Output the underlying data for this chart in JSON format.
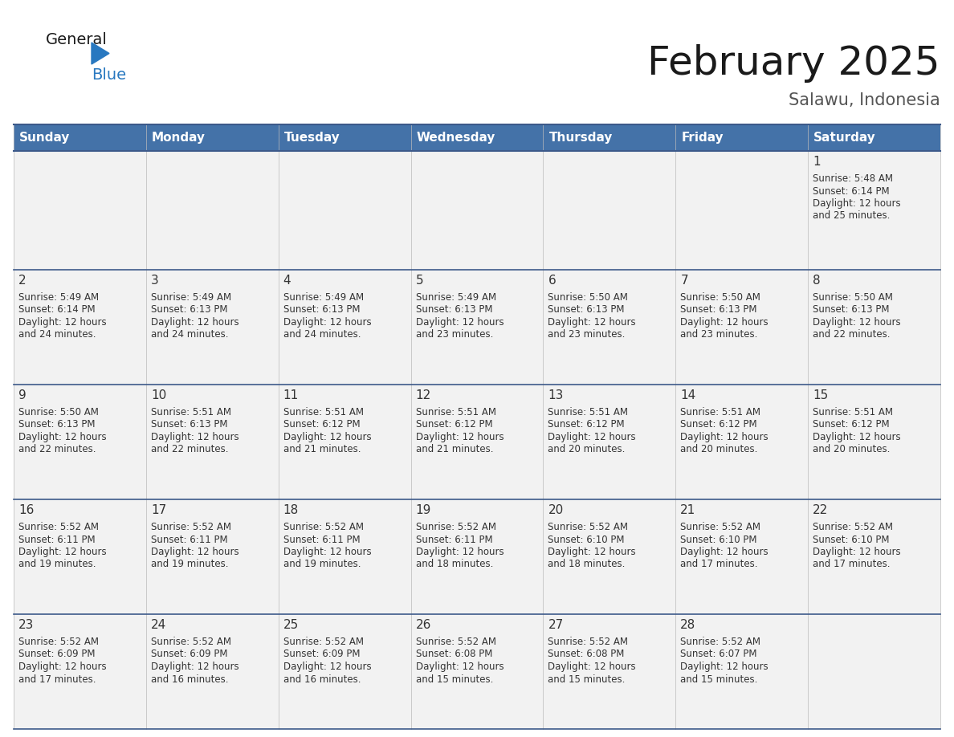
{
  "title": "February 2025",
  "subtitle": "Salawu, Indonesia",
  "header_color": "#4472a8",
  "header_text_color": "#ffffff",
  "day_names": [
    "Sunday",
    "Monday",
    "Tuesday",
    "Wednesday",
    "Thursday",
    "Friday",
    "Saturday"
  ],
  "cell_bg_color": "#f2f2f2",
  "cell_border_color": "#3d5a8a",
  "text_color": "#333333",
  "logo_general_color": "#1a1a1a",
  "logo_blue_color": "#2878c0",
  "title_fontsize": 36,
  "subtitle_fontsize": 15,
  "header_fontsize": 11,
  "day_num_fontsize": 11,
  "info_fontsize": 8.5,
  "days": [
    {
      "day": 1,
      "col": 6,
      "row": 0,
      "sunrise": "5:48 AM",
      "sunset": "6:14 PM",
      "daylight": "12 hours and 25 minutes."
    },
    {
      "day": 2,
      "col": 0,
      "row": 1,
      "sunrise": "5:49 AM",
      "sunset": "6:14 PM",
      "daylight": "12 hours and 24 minutes."
    },
    {
      "day": 3,
      "col": 1,
      "row": 1,
      "sunrise": "5:49 AM",
      "sunset": "6:13 PM",
      "daylight": "12 hours and 24 minutes."
    },
    {
      "day": 4,
      "col": 2,
      "row": 1,
      "sunrise": "5:49 AM",
      "sunset": "6:13 PM",
      "daylight": "12 hours and 24 minutes."
    },
    {
      "day": 5,
      "col": 3,
      "row": 1,
      "sunrise": "5:49 AM",
      "sunset": "6:13 PM",
      "daylight": "12 hours and 23 minutes."
    },
    {
      "day": 6,
      "col": 4,
      "row": 1,
      "sunrise": "5:50 AM",
      "sunset": "6:13 PM",
      "daylight": "12 hours and 23 minutes."
    },
    {
      "day": 7,
      "col": 5,
      "row": 1,
      "sunrise": "5:50 AM",
      "sunset": "6:13 PM",
      "daylight": "12 hours and 23 minutes."
    },
    {
      "day": 8,
      "col": 6,
      "row": 1,
      "sunrise": "5:50 AM",
      "sunset": "6:13 PM",
      "daylight": "12 hours and 22 minutes."
    },
    {
      "day": 9,
      "col": 0,
      "row": 2,
      "sunrise": "5:50 AM",
      "sunset": "6:13 PM",
      "daylight": "12 hours and 22 minutes."
    },
    {
      "day": 10,
      "col": 1,
      "row": 2,
      "sunrise": "5:51 AM",
      "sunset": "6:13 PM",
      "daylight": "12 hours and 22 minutes."
    },
    {
      "day": 11,
      "col": 2,
      "row": 2,
      "sunrise": "5:51 AM",
      "sunset": "6:12 PM",
      "daylight": "12 hours and 21 minutes."
    },
    {
      "day": 12,
      "col": 3,
      "row": 2,
      "sunrise": "5:51 AM",
      "sunset": "6:12 PM",
      "daylight": "12 hours and 21 minutes."
    },
    {
      "day": 13,
      "col": 4,
      "row": 2,
      "sunrise": "5:51 AM",
      "sunset": "6:12 PM",
      "daylight": "12 hours and 20 minutes."
    },
    {
      "day": 14,
      "col": 5,
      "row": 2,
      "sunrise": "5:51 AM",
      "sunset": "6:12 PM",
      "daylight": "12 hours and 20 minutes."
    },
    {
      "day": 15,
      "col": 6,
      "row": 2,
      "sunrise": "5:51 AM",
      "sunset": "6:12 PM",
      "daylight": "12 hours and 20 minutes."
    },
    {
      "day": 16,
      "col": 0,
      "row": 3,
      "sunrise": "5:52 AM",
      "sunset": "6:11 PM",
      "daylight": "12 hours and 19 minutes."
    },
    {
      "day": 17,
      "col": 1,
      "row": 3,
      "sunrise": "5:52 AM",
      "sunset": "6:11 PM",
      "daylight": "12 hours and 19 minutes."
    },
    {
      "day": 18,
      "col": 2,
      "row": 3,
      "sunrise": "5:52 AM",
      "sunset": "6:11 PM",
      "daylight": "12 hours and 19 minutes."
    },
    {
      "day": 19,
      "col": 3,
      "row": 3,
      "sunrise": "5:52 AM",
      "sunset": "6:11 PM",
      "daylight": "12 hours and 18 minutes."
    },
    {
      "day": 20,
      "col": 4,
      "row": 3,
      "sunrise": "5:52 AM",
      "sunset": "6:10 PM",
      "daylight": "12 hours and 18 minutes."
    },
    {
      "day": 21,
      "col": 5,
      "row": 3,
      "sunrise": "5:52 AM",
      "sunset": "6:10 PM",
      "daylight": "12 hours and 17 minutes."
    },
    {
      "day": 22,
      "col": 6,
      "row": 3,
      "sunrise": "5:52 AM",
      "sunset": "6:10 PM",
      "daylight": "12 hours and 17 minutes."
    },
    {
      "day": 23,
      "col": 0,
      "row": 4,
      "sunrise": "5:52 AM",
      "sunset": "6:09 PM",
      "daylight": "12 hours and 17 minutes."
    },
    {
      "day": 24,
      "col": 1,
      "row": 4,
      "sunrise": "5:52 AM",
      "sunset": "6:09 PM",
      "daylight": "12 hours and 16 minutes."
    },
    {
      "day": 25,
      "col": 2,
      "row": 4,
      "sunrise": "5:52 AM",
      "sunset": "6:09 PM",
      "daylight": "12 hours and 16 minutes."
    },
    {
      "day": 26,
      "col": 3,
      "row": 4,
      "sunrise": "5:52 AM",
      "sunset": "6:08 PM",
      "daylight": "12 hours and 15 minutes."
    },
    {
      "day": 27,
      "col": 4,
      "row": 4,
      "sunrise": "5:52 AM",
      "sunset": "6:08 PM",
      "daylight": "12 hours and 15 minutes."
    },
    {
      "day": 28,
      "col": 5,
      "row": 4,
      "sunrise": "5:52 AM",
      "sunset": "6:07 PM",
      "daylight": "12 hours and 15 minutes."
    }
  ]
}
